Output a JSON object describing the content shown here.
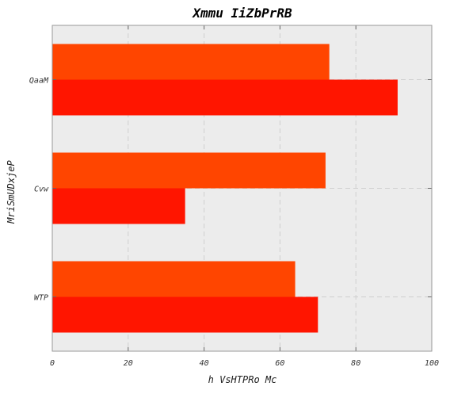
{
  "chart_data": {
    "type": "bar",
    "orientation": "horizontal",
    "title": "Xmmu IiZbPrRB",
    "xlabel": "h  VsHTPRo Mc",
    "ylabel": "MriSmUDxjeP",
    "categories": [
      "QaaM",
      "Cvw",
      "WTP"
    ],
    "series": [
      {
        "values": [
          73,
          72,
          64
        ],
        "color": "#ff4500"
      },
      {
        "values": [
          91,
          35,
          70
        ],
        "color": "#ff1500"
      }
    ],
    "xlim": [
      0,
      100
    ],
    "xticks": [
      "0",
      "20",
      "40",
      "60",
      "80",
      "100"
    ],
    "grid": true,
    "background": "#ececec"
  }
}
